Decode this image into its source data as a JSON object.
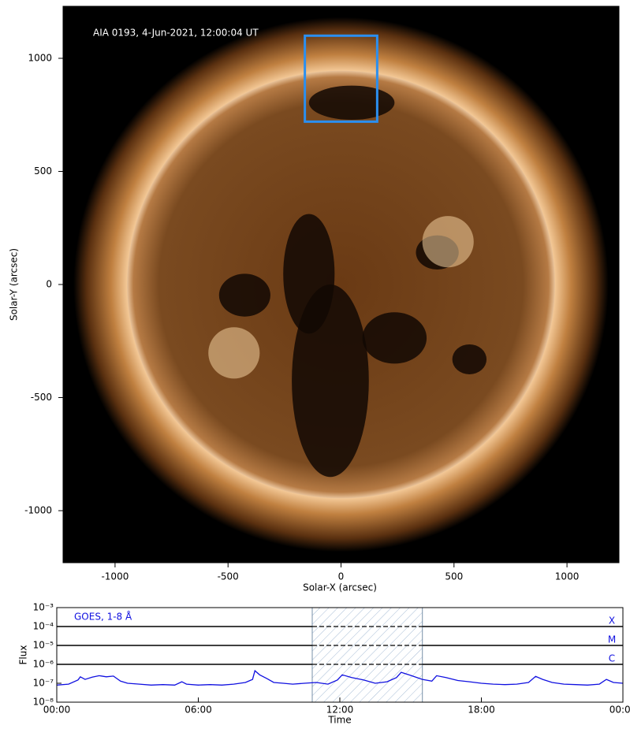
{
  "chart_data": [
    {
      "type": "image",
      "annotation": "AIA 0193, 4-Jun-2021, 12:00:04 UT",
      "xlabel": "Solar-X (arcsec)",
      "ylabel": "Solar-Y (arcsec)",
      "xlim": [
        -1230,
        1230
      ],
      "ylim": [
        -1230,
        1230
      ],
      "xticks": [
        -1000,
        -500,
        0,
        500,
        1000
      ],
      "yticks": [
        -1000,
        -500,
        0,
        500,
        1000
      ],
      "disk_radius": 947,
      "box": {
        "x": [
          -160,
          160
        ],
        "y": [
          720,
          1100
        ],
        "color": "#2b8ff0"
      }
    },
    {
      "type": "line",
      "title": "GOES, 1-8 Å",
      "xlabel": "Time",
      "ylabel": "Flux",
      "log_y": true,
      "xlim": [
        0,
        24
      ],
      "ylim": [
        1e-08,
        0.001
      ],
      "xticks": [
        {
          "value": 0,
          "label": "00:00"
        },
        {
          "value": 6,
          "label": "06:00"
        },
        {
          "value": 12,
          "label": "12:00"
        },
        {
          "value": 18,
          "label": "18:00"
        },
        {
          "value": 24,
          "label": "00:00"
        }
      ],
      "yticks": [
        {
          "value": 1e-08,
          "label": "10⁻⁸"
        },
        {
          "value": 1e-07,
          "label": "10⁻⁷"
        },
        {
          "value": 1e-06,
          "label": "10⁻⁶"
        },
        {
          "value": 1e-05,
          "label": "10⁻⁵"
        },
        {
          "value": 0.0001,
          "label": "10⁻⁴"
        },
        {
          "value": 0.001,
          "label": "10⁻³"
        }
      ],
      "flare_classes": [
        {
          "label": "X",
          "value": 0.0001
        },
        {
          "label": "M",
          "value": 1e-05
        },
        {
          "label": "C",
          "value": 1e-06
        }
      ],
      "shaded_range": [
        10.83,
        15.5
      ],
      "series": [
        {
          "name": "GOES, 1-8 Å",
          "color": "#1010e0",
          "x": [
            0,
            0.5,
            0.9,
            1.0,
            1.2,
            1.5,
            1.8,
            2.1,
            2.4,
            2.7,
            3,
            3.5,
            4,
            4.5,
            5,
            5.3,
            5.5,
            6,
            6.5,
            7,
            7.5,
            8,
            8.3,
            8.4,
            8.6,
            8.9,
            9.2,
            9.6,
            10,
            10.5,
            11,
            11.5,
            11.9,
            12.1,
            12.5,
            13,
            13.5,
            14,
            14.4,
            14.6,
            15,
            15.5,
            15.9,
            16.1,
            16.5,
            17,
            17.5,
            18,
            18.5,
            19,
            19.5,
            20,
            20.3,
            20.6,
            21,
            21.5,
            22,
            22.5,
            23,
            23.3,
            23.6,
            24
          ],
          "values": [
            8e-08,
            9e-08,
            1.5e-07,
            2.2e-07,
            1.6e-07,
            2.1e-07,
            2.5e-07,
            2.2e-07,
            2.4e-07,
            1.3e-07,
            1e-07,
            9e-08,
            8e-08,
            8.5e-08,
            8e-08,
            1.2e-07,
            9e-08,
            8e-08,
            8.5e-08,
            8e-08,
            9e-08,
            1.1e-07,
            1.6e-07,
            4.6e-07,
            2.8e-07,
            1.8e-07,
            1.1e-07,
            1e-07,
            9e-08,
            1e-07,
            1.1e-07,
            9e-08,
            1.5e-07,
            2.8e-07,
            2e-07,
            1.5e-07,
            1e-07,
            1.2e-07,
            2e-07,
            3.8e-07,
            2.6e-07,
            1.6e-07,
            1.3e-07,
            2.5e-07,
            2e-07,
            1.4e-07,
            1.2e-07,
            1e-07,
            9e-08,
            8.5e-08,
            9e-08,
            1.1e-07,
            2.3e-07,
            1.6e-07,
            1.1e-07,
            9e-08,
            8.5e-08,
            8e-08,
            9e-08,
            1.6e-07,
            1.1e-07,
            1e-07
          ]
        }
      ]
    }
  ]
}
